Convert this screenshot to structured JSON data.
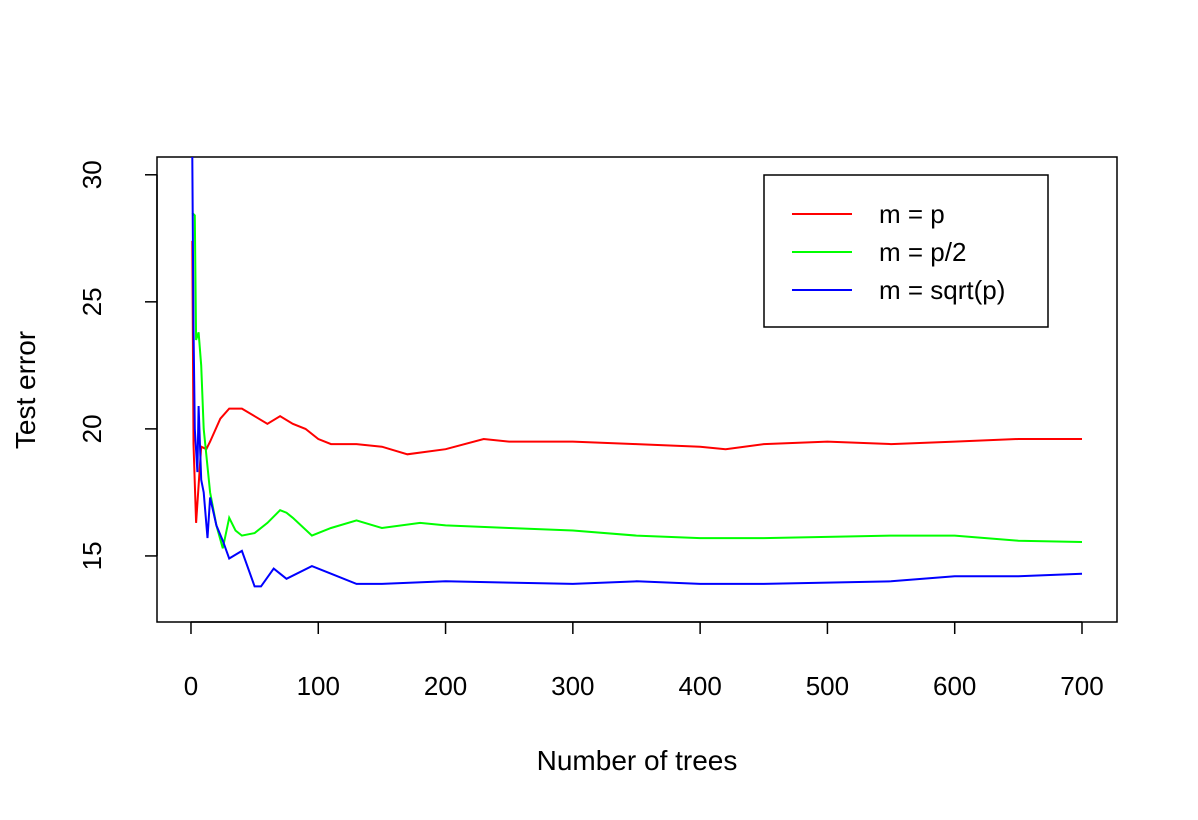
{
  "chart_data": {
    "type": "line",
    "title": "",
    "xlabel": "Number of trees",
    "ylabel": "Test error",
    "xlim": [
      -26.7,
      727.5
    ],
    "ylim": [
      12.4,
      30.7
    ],
    "xticks": [
      0,
      100,
      200,
      300,
      400,
      500,
      600,
      700
    ],
    "yticks": [
      15,
      20,
      25,
      30
    ],
    "grid": false,
    "legend_position": "top-right",
    "series": [
      {
        "name": "m = p",
        "color": "#ff0000",
        "x": [
          1,
          2,
          4,
          8,
          12,
          15,
          23,
          30,
          40,
          50,
          60,
          70,
          80,
          90,
          100,
          110,
          130,
          150,
          170,
          200,
          230,
          250,
          300,
          350,
          400,
          420,
          450,
          500,
          550,
          600,
          650,
          700
        ],
        "y": [
          27.4,
          19.4,
          16.3,
          19.3,
          19.2,
          19.5,
          20.4,
          20.8,
          20.8,
          20.5,
          20.2,
          20.5,
          20.2,
          20.0,
          19.6,
          19.4,
          19.4,
          19.3,
          19.0,
          19.2,
          19.6,
          19.5,
          19.5,
          19.4,
          19.3,
          19.2,
          19.4,
          19.5,
          19.4,
          19.5,
          19.6,
          19.6
        ]
      },
      {
        "name": "m = p/2",
        "color": "#00ff00",
        "x": [
          1,
          3,
          4,
          6,
          8,
          10,
          15,
          20,
          25,
          30,
          35,
          40,
          50,
          60,
          70,
          75,
          80,
          95,
          110,
          130,
          150,
          180,
          200,
          250,
          300,
          350,
          400,
          450,
          500,
          550,
          600,
          650,
          700
        ],
        "y": [
          28.5,
          28.4,
          23.5,
          23.8,
          22.5,
          20.0,
          17.5,
          16.2,
          15.3,
          16.5,
          16.0,
          15.8,
          15.9,
          16.3,
          16.8,
          16.7,
          16.5,
          15.8,
          16.1,
          16.4,
          16.1,
          16.3,
          16.2,
          16.1,
          16.0,
          15.8,
          15.7,
          15.7,
          15.75,
          15.8,
          15.8,
          15.6,
          15.55
        ]
      },
      {
        "name": "m = sqrt(p)",
        "color": "#0000ff",
        "x": [
          1,
          2,
          3,
          5,
          6,
          8,
          10,
          13,
          15,
          20,
          25,
          30,
          40,
          50,
          55,
          65,
          75,
          95,
          110,
          130,
          150,
          200,
          250,
          300,
          350,
          400,
          450,
          500,
          550,
          600,
          650,
          700
        ],
        "y": [
          30.7,
          24.0,
          20.0,
          18.3,
          20.9,
          18.0,
          17.5,
          15.7,
          17.3,
          16.2,
          15.6,
          14.9,
          15.2,
          13.8,
          13.8,
          14.5,
          14.1,
          14.6,
          14.3,
          13.9,
          13.9,
          14.0,
          13.95,
          13.9,
          14.0,
          13.9,
          13.9,
          13.95,
          14.0,
          14.2,
          14.2,
          14.3
        ]
      }
    ]
  }
}
